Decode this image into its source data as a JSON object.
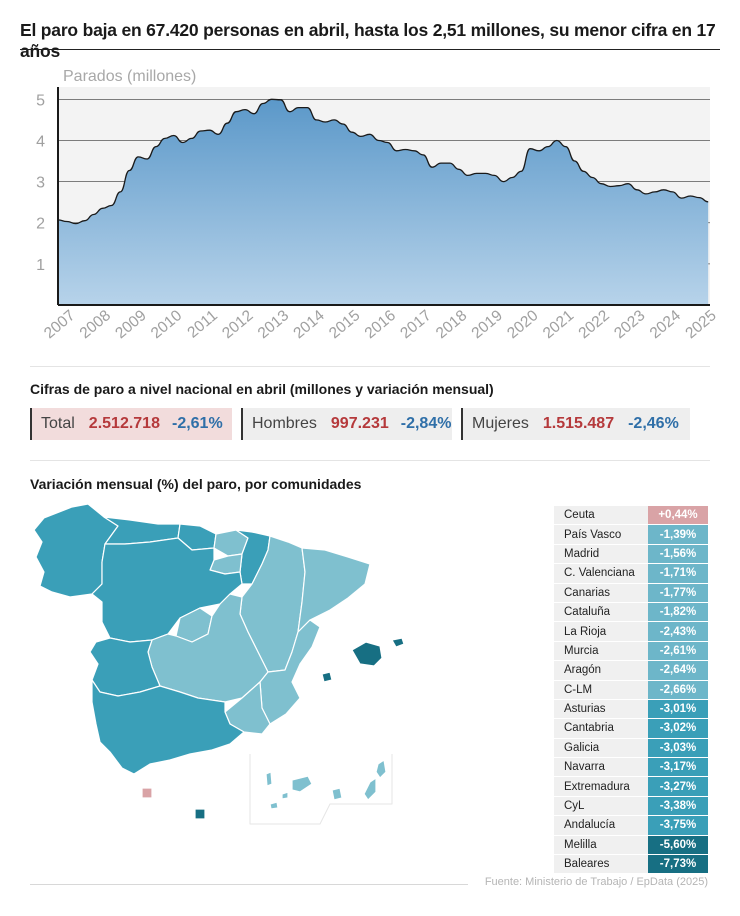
{
  "headline": "El paro baja en 67.420 personas en abril, hasta los 2,51 millones, su menor cifra en 17 años",
  "chart_data": {
    "type": "area",
    "ylabel": "Parados (millones)",
    "ylim": [
      0,
      5.3
    ],
    "yticks": [
      1,
      2,
      3,
      4,
      5
    ],
    "xlim": [
      2007.0,
      2025.3
    ],
    "xticks": [
      "2007",
      "2008",
      "2009",
      "2010",
      "2011",
      "2012",
      "2013",
      "2014",
      "2015",
      "2016",
      "2017",
      "2018",
      "2019",
      "2020",
      "2021",
      "2022",
      "2023",
      "2024",
      "2025"
    ],
    "grid": true,
    "fill_top_color": "#5b98c9",
    "fill_bottom_color": "#b7d3ea",
    "line_color": "#1a1a1a",
    "x": [
      2007.0,
      2007.25,
      2007.5,
      2007.75,
      2008.0,
      2008.25,
      2008.5,
      2008.75,
      2009.0,
      2009.25,
      2009.5,
      2009.75,
      2010.0,
      2010.25,
      2010.5,
      2010.75,
      2011.0,
      2011.25,
      2011.5,
      2011.75,
      2012.0,
      2012.25,
      2012.5,
      2012.75,
      2013.0,
      2013.25,
      2013.5,
      2013.75,
      2014.0,
      2014.25,
      2014.5,
      2014.75,
      2015.0,
      2015.25,
      2015.5,
      2015.75,
      2016.0,
      2016.25,
      2016.5,
      2016.75,
      2017.0,
      2017.25,
      2017.5,
      2017.75,
      2018.0,
      2018.25,
      2018.5,
      2018.75,
      2019.0,
      2019.25,
      2019.5,
      2019.75,
      2020.0,
      2020.25,
      2020.5,
      2020.75,
      2021.0,
      2021.25,
      2021.5,
      2021.75,
      2022.0,
      2022.25,
      2022.5,
      2022.75,
      2023.0,
      2023.25,
      2023.5,
      2023.75,
      2024.0,
      2024.25,
      2024.5,
      2024.75,
      2025.0,
      2025.25
    ],
    "y": [
      2.07,
      2.03,
      1.98,
      2.05,
      2.2,
      2.35,
      2.42,
      2.75,
      3.27,
      3.6,
      3.55,
      3.85,
      4.05,
      4.12,
      3.95,
      4.05,
      4.23,
      4.25,
      4.15,
      4.42,
      4.7,
      4.75,
      4.65,
      4.9,
      5.0,
      4.99,
      4.7,
      4.8,
      4.8,
      4.5,
      4.45,
      4.5,
      4.4,
      4.2,
      4.1,
      4.15,
      4.0,
      3.95,
      3.75,
      3.78,
      3.75,
      3.65,
      3.35,
      3.45,
      3.45,
      3.3,
      3.15,
      3.2,
      3.2,
      3.15,
      3.0,
      3.1,
      3.25,
      3.8,
      3.75,
      3.85,
      4.0,
      3.85,
      3.5,
      3.25,
      3.1,
      2.95,
      2.88,
      2.9,
      2.95,
      2.8,
      2.7,
      2.75,
      2.8,
      2.75,
      2.6,
      2.65,
      2.61,
      2.51
    ]
  },
  "national": {
    "title": "Cifras de paro a nivel nacional en abril (millones y variación mensual)",
    "items": [
      {
        "label": "Total",
        "value": "2.512.718",
        "change": "-2,61%",
        "highlight_color": "#f2dcdc"
      },
      {
        "label": "Hombres",
        "value": "997.231",
        "change": "-2,84%",
        "highlight_color": "#eeeeee"
      },
      {
        "label": "Mujeres",
        "value": "1.515.487",
        "change": "-2,46%",
        "highlight_color": "#eeeeee"
      }
    ]
  },
  "regions": {
    "title": "Variación mensual (%) del paro, por comunidades",
    "rows": [
      {
        "name": "Ceuta",
        "value": "+0,44%",
        "color": "#d9a3a6"
      },
      {
        "name": "País Vasco",
        "value": "-1,39%",
        "color": "#6db6c9"
      },
      {
        "name": "Madrid",
        "value": "-1,56%",
        "color": "#6db6c9"
      },
      {
        "name": "C. Valenciana",
        "value": "-1,71%",
        "color": "#6db6c9"
      },
      {
        "name": "Canarias",
        "value": "-1,77%",
        "color": "#6db6c9"
      },
      {
        "name": "Cataluña",
        "value": "-1,82%",
        "color": "#6db6c9"
      },
      {
        "name": "La Rioja",
        "value": "-2,43%",
        "color": "#6db6c9"
      },
      {
        "name": "Murcia",
        "value": "-2,61%",
        "color": "#6db6c9"
      },
      {
        "name": "Aragón",
        "value": "-2,64%",
        "color": "#6db6c9"
      },
      {
        "name": "C-LM",
        "value": "-2,66%",
        "color": "#6db6c9"
      },
      {
        "name": "Asturias",
        "value": "-3,01%",
        "color": "#3a9fb8"
      },
      {
        "name": "Cantabria",
        "value": "-3,02%",
        "color": "#3a9fb8"
      },
      {
        "name": "Galicia",
        "value": "-3,03%",
        "color": "#3a9fb8"
      },
      {
        "name": "Navarra",
        "value": "-3,17%",
        "color": "#3a9fb8"
      },
      {
        "name": "Extremadura",
        "value": "-3,27%",
        "color": "#3a9fb8"
      },
      {
        "name": "CyL",
        "value": "-3,38%",
        "color": "#3a9fb8"
      },
      {
        "name": "Andalucía",
        "value": "-3,75%",
        "color": "#3a9fb8"
      },
      {
        "name": "Melilla",
        "value": "-5,60%",
        "color": "#176f83"
      },
      {
        "name": "Baleares",
        "value": "-7,73%",
        "color": "#176f83"
      }
    ]
  },
  "map_colors": {
    "light": "#7fc0cf",
    "medium": "#3a9fb8",
    "dark": "#176f83",
    "positive": "#d9a3a6",
    "border": "#ffffff"
  },
  "source": "Fuente: Ministerio de Trabajo / EpData (2025)"
}
